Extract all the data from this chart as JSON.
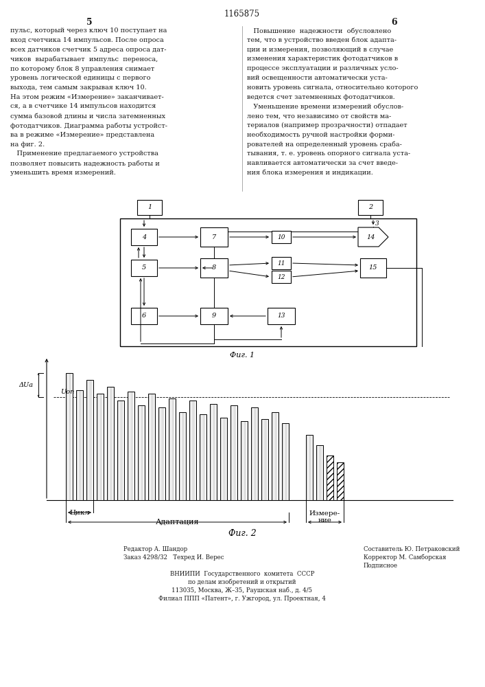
{
  "patent_number": "1165875",
  "page_left": "5",
  "page_right": "6",
  "bg_color": "#ffffff",
  "text_color": "#1a1a1a",
  "fig1_label": "Фиг. 1",
  "fig2_label": "Фиг. 2",
  "footer_lines": [
    [
      "Редактор А. Шандор",
      "Составитель Ю. Петраковский"
    ],
    [
      "Заказ 4298/32  Техред И. Верес",
      "Корректор М. Самборская"
    ],
    [
      "",
      "Подписное"
    ],
    [
      "ВНИИПИ Государственного  комитета  СССР",
      ""
    ],
    [
      "по делам изобретений и открытий",
      ""
    ],
    [
      "113035, Москва, Ж–5, Раушская наб., д. 4/5",
      ""
    ],
    [
      "Филиал ППП «Патент», г. Ужгород, ул. Проектная, 4",
      ""
    ]
  ]
}
